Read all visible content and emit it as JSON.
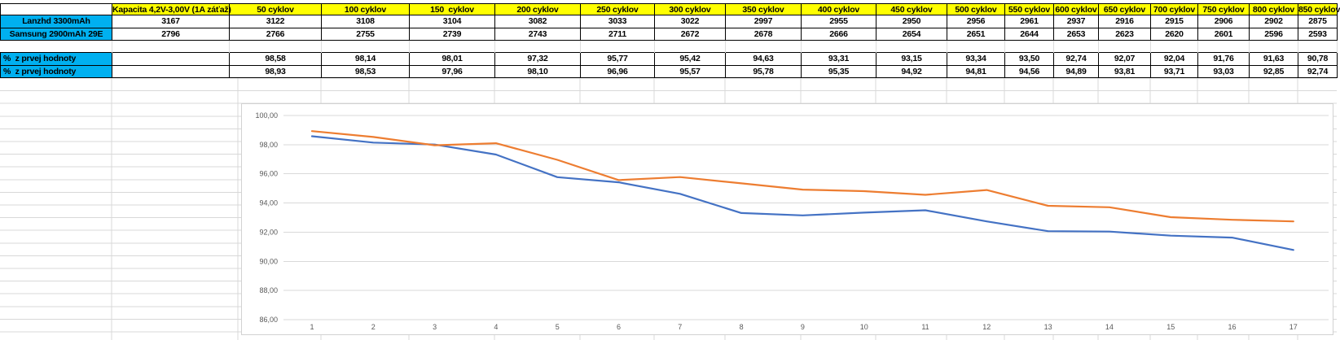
{
  "sheet": {
    "table": {
      "corner_label": "",
      "capacity_header": "Kapacita 4,2V-3,00V (1A záťaž)",
      "cycle_headers": [
        "50 cyklov",
        "100 cyklov",
        "150  cyklov",
        "200 cyklov",
        "250 cyklov",
        "300 cyklov",
        "350 cyklov",
        "400 cyklov",
        "450 cyklov",
        "500 cyklov",
        "550 cyklov",
        "600 cyklov",
        "650 cyklov",
        "700 cyklov",
        "750 cyklov",
        "800 cyklov",
        "850 cyklov"
      ],
      "battery_rows": [
        {
          "label": "Lanzhd 3300mAh",
          "capacity": "3167",
          "values": [
            "3122",
            "3108",
            "3104",
            "3082",
            "3033",
            "3022",
            "2997",
            "2955",
            "2950",
            "2956",
            "2961",
            "2937",
            "2916",
            "2915",
            "2906",
            "2902",
            "2875"
          ]
        },
        {
          "label": "Samsung 2900mAh 29E",
          "capacity": "2796",
          "values": [
            "2766",
            "2755",
            "2739",
            "2743",
            "2711",
            "2672",
            "2678",
            "2666",
            "2654",
            "2651",
            "2644",
            "2653",
            "2623",
            "2620",
            "2601",
            "2596",
            "2593"
          ]
        }
      ],
      "percent_rows": [
        {
          "label": "%  z prvej hodnoty",
          "capacity": "",
          "values": [
            "98,58",
            "98,14",
            "98,01",
            "97,32",
            "95,77",
            "95,42",
            "94,63",
            "93,31",
            "93,15",
            "93,34",
            "93,50",
            "92,74",
            "92,07",
            "92,04",
            "91,76",
            "91,63",
            "90,78"
          ]
        },
        {
          "label": "%  z prvej hodnoty",
          "capacity": "",
          "values": [
            "98,93",
            "98,53",
            "97,96",
            "98,10",
            "96,96",
            "95,57",
            "95,78",
            "95,35",
            "94,92",
            "94,81",
            "94,56",
            "94,89",
            "93,81",
            "93,71",
            "93,03",
            "92,85",
            "92,74"
          ]
        }
      ],
      "colors": {
        "header_bg": "#FFFF00",
        "label_bg": "#00B0F0",
        "border": "#000000"
      }
    }
  },
  "chart_data": {
    "type": "line",
    "x_labels": [
      "1",
      "2",
      "3",
      "4",
      "5",
      "6",
      "7",
      "8",
      "9",
      "10",
      "11",
      "12",
      "13",
      "14",
      "15",
      "16",
      "17"
    ],
    "y_ticks": [
      {
        "value": 100,
        "label": "100,00"
      },
      {
        "value": 98,
        "label": "98,00"
      },
      {
        "value": 96,
        "label": "96,00"
      },
      {
        "value": 94,
        "label": "94,00"
      },
      {
        "value": 92,
        "label": "92,00"
      },
      {
        "value": 90,
        "label": "90,00"
      },
      {
        "value": 88,
        "label": "88,00"
      },
      {
        "value": 86,
        "label": "86,00"
      }
    ],
    "ymin": 86,
    "ymax": 100,
    "grid": true,
    "legend": "none",
    "title": "",
    "series": [
      {
        "name": "Lanzhd 3300mAh",
        "color": "#4472C4",
        "values": [
          98.58,
          98.14,
          98.01,
          97.32,
          95.77,
          95.42,
          94.63,
          93.31,
          93.15,
          93.34,
          93.5,
          92.74,
          92.07,
          92.04,
          91.76,
          91.63,
          90.78
        ]
      },
      {
        "name": "Samsung 2900mAh 29E",
        "color": "#ED7D31",
        "values": [
          98.93,
          98.53,
          97.96,
          98.1,
          96.96,
          95.57,
          95.78,
          95.35,
          94.92,
          94.81,
          94.56,
          94.89,
          93.81,
          93.71,
          93.03,
          92.85,
          92.74
        ]
      }
    ]
  }
}
